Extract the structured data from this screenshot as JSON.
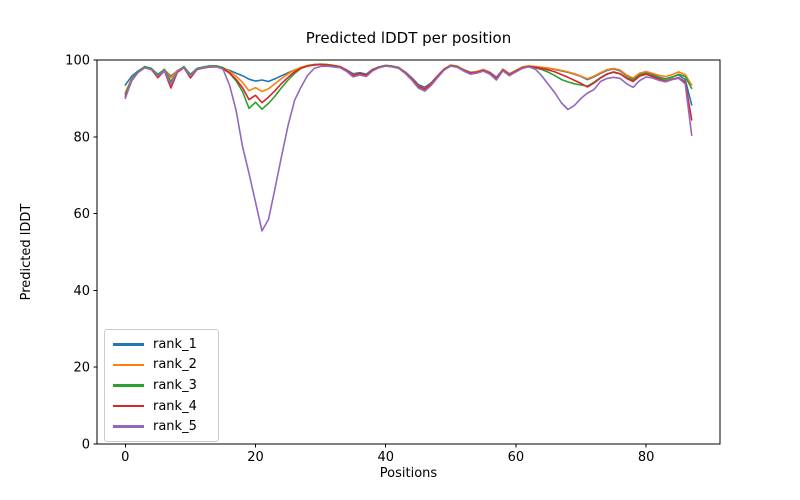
{
  "figure": {
    "title": "Predicted lDDT per position",
    "xlabel": "Positions",
    "ylabel": "Predicted lDDT"
  },
  "chart_data": {
    "type": "line",
    "title": "Predicted lDDT per position",
    "xlabel": "Positions",
    "ylabel": "Predicted lDDT",
    "xlim": [
      -4.35,
      91.35
    ],
    "ylim": [
      0,
      100
    ],
    "xticks": [
      0,
      20,
      40,
      60,
      80
    ],
    "yticks": [
      0,
      20,
      40,
      60,
      80,
      100
    ],
    "grid": false,
    "legend_position": "lower left",
    "frame_color": "#000000",
    "x": [
      0,
      1,
      2,
      3,
      4,
      5,
      6,
      7,
      8,
      9,
      10,
      11,
      12,
      13,
      14,
      15,
      16,
      17,
      18,
      19,
      20,
      21,
      22,
      23,
      24,
      25,
      26,
      27,
      28,
      29,
      30,
      31,
      32,
      33,
      34,
      35,
      36,
      37,
      38,
      39,
      40,
      41,
      42,
      43,
      44,
      45,
      46,
      47,
      48,
      49,
      50,
      51,
      52,
      53,
      54,
      55,
      56,
      57,
      58,
      59,
      60,
      61,
      62,
      63,
      64,
      65,
      66,
      67,
      68,
      69,
      70,
      71,
      72,
      73,
      74,
      75,
      76,
      77,
      78,
      79,
      80,
      81,
      82,
      83,
      84,
      85,
      86,
      87
    ],
    "series": [
      {
        "name": "rank_1",
        "color": "#1f77b4",
        "values": [
          93.5,
          95.8,
          97.2,
          98.1,
          97.6,
          96.3,
          97.4,
          95.8,
          97.2,
          98.1,
          96.3,
          97.6,
          98.0,
          98.2,
          98.3,
          97.9,
          97.3,
          96.6,
          95.9,
          95.0,
          94.5,
          94.8,
          94.4,
          95.1,
          95.9,
          96.7,
          97.4,
          98.0,
          98.5,
          98.7,
          98.8,
          98.7,
          98.5,
          98.3,
          97.4,
          96.4,
          96.7,
          96.3,
          97.6,
          98.2,
          98.5,
          98.3,
          98.0,
          96.9,
          95.4,
          93.6,
          92.9,
          94.1,
          96.0,
          97.7,
          98.6,
          98.3,
          97.5,
          96.8,
          97.0,
          97.5,
          96.8,
          95.5,
          97.6,
          96.4,
          97.3,
          98.1,
          98.4,
          98.2,
          98.0,
          97.8,
          97.5,
          97.2,
          96.8,
          96.3,
          95.7,
          94.9,
          95.6,
          96.5,
          97.3,
          97.7,
          97.2,
          95.9,
          95.1,
          96.4,
          96.8,
          96.2,
          95.5,
          95.1,
          95.6,
          96.1,
          94.9,
          88.3
        ]
      },
      {
        "name": "rank_2",
        "color": "#ff7f0e",
        "values": [
          91.5,
          95.2,
          97.0,
          98.2,
          97.7,
          96.0,
          97.5,
          95.4,
          97.3,
          98.2,
          96.0,
          97.7,
          98.1,
          98.4,
          98.4,
          98.0,
          97.0,
          95.8,
          94.2,
          92.0,
          92.8,
          91.8,
          92.5,
          93.8,
          95.2,
          96.4,
          97.4,
          98.1,
          98.6,
          98.8,
          98.9,
          98.8,
          98.6,
          98.3,
          97.3,
          96.1,
          96.5,
          96.1,
          97.5,
          98.2,
          98.6,
          98.4,
          98.1,
          96.8,
          95.2,
          93.2,
          92.6,
          93.9,
          95.9,
          97.7,
          98.7,
          98.4,
          97.4,
          96.7,
          97.0,
          97.5,
          96.7,
          95.2,
          97.6,
          96.3,
          97.3,
          98.2,
          98.5,
          98.3,
          98.1,
          97.9,
          97.6,
          97.3,
          96.9,
          96.4,
          95.8,
          95.1,
          95.8,
          96.7,
          97.5,
          97.8,
          97.4,
          96.1,
          95.3,
          96.6,
          97.0,
          96.5,
          96.0,
          95.7,
          96.2,
          96.9,
          96.2,
          93.5
        ]
      },
      {
        "name": "rank_3",
        "color": "#2ca02c",
        "values": [
          91.0,
          95.0,
          97.1,
          98.3,
          97.8,
          96.2,
          97.6,
          94.4,
          97.0,
          98.3,
          96.2,
          97.8,
          98.2,
          98.5,
          98.5,
          98.0,
          96.6,
          94.6,
          91.8,
          87.4,
          89.0,
          87.2,
          88.7,
          90.6,
          92.8,
          94.8,
          96.5,
          97.8,
          98.5,
          98.8,
          98.9,
          98.8,
          98.6,
          98.2,
          97.2,
          95.9,
          96.4,
          96.0,
          97.4,
          98.2,
          98.6,
          98.4,
          98.0,
          96.7,
          95.0,
          93.0,
          92.4,
          93.7,
          95.7,
          97.6,
          98.6,
          98.3,
          97.3,
          96.5,
          96.8,
          97.3,
          96.5,
          95.0,
          97.4,
          96.1,
          97.1,
          98.0,
          98.3,
          98.0,
          97.5,
          96.8,
          95.9,
          94.9,
          94.3,
          93.8,
          93.5,
          93.2,
          94.2,
          95.4,
          96.4,
          96.8,
          96.4,
          95.4,
          94.7,
          96.0,
          96.5,
          96.0,
          95.4,
          95.0,
          95.5,
          96.3,
          95.7,
          92.6
        ]
      },
      {
        "name": "rank_4",
        "color": "#d62728",
        "values": [
          90.5,
          94.6,
          96.9,
          98.0,
          97.5,
          95.4,
          97.2,
          92.7,
          96.8,
          98.0,
          95.3,
          97.5,
          97.9,
          98.2,
          98.2,
          97.7,
          96.6,
          95.0,
          92.8,
          89.7,
          90.8,
          88.9,
          90.3,
          92.0,
          93.9,
          95.5,
          96.9,
          97.9,
          98.4,
          98.7,
          98.8,
          98.7,
          98.5,
          98.2,
          97.3,
          96.0,
          96.5,
          96.1,
          97.4,
          98.1,
          98.5,
          98.3,
          97.9,
          96.7,
          95.1,
          93.1,
          92.5,
          93.8,
          95.8,
          97.6,
          98.5,
          98.2,
          97.3,
          96.6,
          96.8,
          97.3,
          96.6,
          95.1,
          97.4,
          96.2,
          97.1,
          98.0,
          98.3,
          98.1,
          97.8,
          97.4,
          96.9,
          96.2,
          95.5,
          94.7,
          93.9,
          93.0,
          94.0,
          95.3,
          96.3,
          96.9,
          96.4,
          95.2,
          94.4,
          95.8,
          96.3,
          95.7,
          95.0,
          94.5,
          95.0,
          95.4,
          94.3,
          84.4
        ]
      },
      {
        "name": "rank_5",
        "color": "#9467bd",
        "values": [
          90.0,
          94.8,
          96.8,
          98.0,
          97.5,
          95.8,
          97.3,
          93.6,
          97.0,
          98.1,
          95.8,
          97.6,
          98.0,
          98.3,
          98.3,
          97.6,
          93.5,
          87.0,
          77.5,
          70.5,
          63.0,
          55.5,
          58.5,
          66.5,
          75.0,
          83.0,
          89.5,
          93.0,
          96.0,
          97.8,
          98.3,
          98.4,
          98.2,
          98.0,
          97.0,
          95.6,
          96.1,
          95.7,
          97.2,
          98.0,
          98.4,
          98.2,
          97.8,
          96.5,
          94.8,
          92.7,
          91.9,
          93.4,
          95.5,
          97.4,
          98.4,
          98.1,
          97.1,
          96.3,
          96.6,
          97.1,
          96.3,
          94.8,
          97.2,
          95.9,
          96.9,
          97.8,
          98.2,
          97.6,
          95.8,
          93.6,
          91.4,
          88.8,
          87.1,
          88.2,
          90.0,
          91.4,
          92.3,
          94.4,
          95.2,
          95.5,
          95.2,
          93.8,
          92.9,
          94.6,
          95.6,
          95.3,
          94.7,
          94.3,
          94.9,
          95.2,
          93.8,
          80.4
        ]
      }
    ]
  }
}
